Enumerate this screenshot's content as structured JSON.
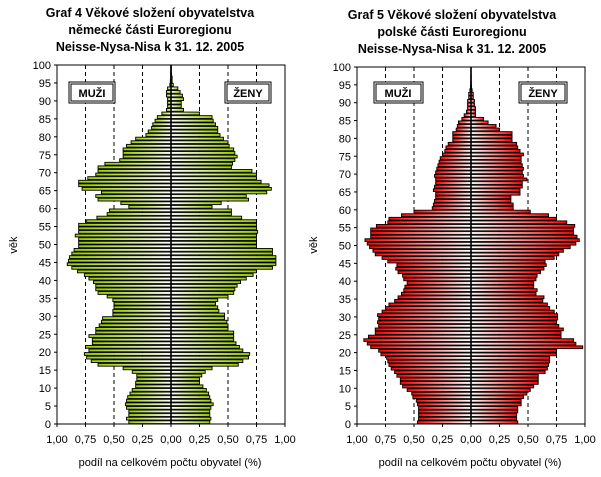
{
  "chart_data": [
    {
      "type": "bar",
      "orientation": "horizontal-pyramid",
      "title": [
        "Graf 4 Věkové složení obyvatelstva",
        "německé části Euroregionu",
        "Neisse-Nysa-Nisa k 31. 12. 2005"
      ],
      "xlabel": "podíl na celkovém počtu obyvatel (%)",
      "ylabel": "věk",
      "xlim": [
        -1.0,
        1.0
      ],
      "ylim": [
        0,
        100
      ],
      "xticks": [
        "1,00",
        "0,75",
        "0,50",
        "0,25",
        "0,00",
        "0,25",
        "0,50",
        "0,75",
        "1,00"
      ],
      "yticks": [
        "0",
        "5",
        "10",
        "15",
        "20",
        "25",
        "30",
        "35",
        "40",
        "45",
        "50",
        "55",
        "60",
        "65",
        "70",
        "75",
        "80",
        "85",
        "90",
        "95",
        "100"
      ],
      "grid": "vertical dashed at ±0.25, ±0.5, ±0.75",
      "legend_boxes": {
        "left": "MUŽI",
        "right": "ŽENY"
      },
      "color": "#99cc00",
      "categories": "age 0-99",
      "series": [
        {
          "name": "MUŽI",
          "values": [
            0.37,
            0.39,
            0.37,
            0.37,
            0.39,
            0.4,
            0.39,
            0.38,
            0.36,
            0.34,
            0.31,
            0.31,
            0.3,
            0.3,
            0.34,
            0.42,
            0.64,
            0.7,
            0.74,
            0.76,
            0.72,
            0.75,
            0.69,
            0.69,
            0.72,
            0.66,
            0.66,
            0.63,
            0.61,
            0.6,
            0.51,
            0.51,
            0.5,
            0.5,
            0.51,
            0.56,
            0.64,
            0.66,
            0.66,
            0.68,
            0.72,
            0.76,
            0.82,
            0.87,
            0.91,
            0.9,
            0.89,
            0.87,
            0.85,
            0.81,
            0.81,
            0.81,
            0.84,
            0.81,
            0.81,
            0.81,
            0.74,
            0.65,
            0.56,
            0.54,
            0.37,
            0.44,
            0.64,
            0.66,
            0.61,
            0.78,
            0.81,
            0.81,
            0.73,
            0.66,
            0.64,
            0.64,
            0.58,
            0.45,
            0.42,
            0.42,
            0.42,
            0.39,
            0.35,
            0.31,
            0.22,
            0.2,
            0.17,
            0.16,
            0.14,
            0.12,
            0.08,
            0.04,
            0.03,
            0.03,
            0.03,
            0.04,
            0.04,
            0.03,
            0.01,
            0.006,
            0.003,
            0.003,
            0.002,
            0.002
          ]
        },
        {
          "name": "ŽENY",
          "values": [
            0.34,
            0.35,
            0.34,
            0.34,
            0.35,
            0.37,
            0.35,
            0.34,
            0.33,
            0.31,
            0.28,
            0.25,
            0.25,
            0.27,
            0.3,
            0.36,
            0.59,
            0.63,
            0.68,
            0.69,
            0.63,
            0.6,
            0.57,
            0.55,
            0.55,
            0.55,
            0.5,
            0.5,
            0.49,
            0.47,
            0.47,
            0.42,
            0.41,
            0.39,
            0.41,
            0.5,
            0.55,
            0.56,
            0.58,
            0.61,
            0.66,
            0.72,
            0.75,
            0.89,
            0.92,
            0.92,
            0.92,
            0.89,
            0.89,
            0.75,
            0.75,
            0.75,
            0.75,
            0.76,
            0.75,
            0.75,
            0.75,
            0.62,
            0.53,
            0.53,
            0.36,
            0.44,
            0.68,
            0.66,
            0.84,
            0.88,
            0.86,
            0.79,
            0.75,
            0.75,
            0.71,
            0.53,
            0.54,
            0.56,
            0.58,
            0.56,
            0.55,
            0.51,
            0.5,
            0.46,
            0.43,
            0.41,
            0.41,
            0.39,
            0.37,
            0.36,
            0.25,
            0.11,
            0.09,
            0.09,
            0.11,
            0.1,
            0.08,
            0.06,
            0.02,
            0.01,
            0.01,
            0.005,
            0.003,
            0.003
          ]
        }
      ]
    },
    {
      "type": "bar",
      "orientation": "horizontal-pyramid",
      "title": [
        "Graf 5 Věkové složení obyvatelstva",
        "polské části Euroregionu",
        "Neisse-Nysa-Nisa k 31. 12. 2005"
      ],
      "xlabel": "podíl na celkovém počtu obyvatel (%)",
      "ylabel": "věk",
      "xlim": [
        -1.0,
        1.0
      ],
      "ylim": [
        0,
        100
      ],
      "xticks": [
        "1,00",
        "0,75",
        "0,50",
        "0,25",
        "0,00",
        "0,25",
        "0,50",
        "0,75",
        "1,00"
      ],
      "yticks": [
        "0",
        "5",
        "10",
        "15",
        "20",
        "25",
        "30",
        "35",
        "40",
        "45",
        "50",
        "55",
        "60",
        "65",
        "70",
        "75",
        "80",
        "85",
        "90",
        "95",
        "100"
      ],
      "grid": "vertical dashed at ±0.25, ±0.5, ±0.75",
      "legend_boxes": {
        "left": "MUŽI",
        "right": "ŽENY"
      },
      "color": "#ff0000",
      "categories": "age 0-99",
      "series": [
        {
          "name": "MUŽI",
          "values": [
            0.47,
            0.46,
            0.46,
            0.46,
            0.46,
            0.47,
            0.48,
            0.51,
            0.52,
            0.56,
            0.6,
            0.62,
            0.62,
            0.65,
            0.67,
            0.7,
            0.72,
            0.73,
            0.74,
            0.79,
            0.81,
            0.88,
            0.91,
            0.94,
            0.9,
            0.84,
            0.84,
            0.81,
            0.82,
            0.81,
            0.82,
            0.78,
            0.75,
            0.72,
            0.67,
            0.64,
            0.61,
            0.59,
            0.58,
            0.56,
            0.59,
            0.6,
            0.64,
            0.66,
            0.65,
            0.73,
            0.78,
            0.84,
            0.86,
            0.89,
            0.91,
            0.93,
            0.88,
            0.88,
            0.88,
            0.83,
            0.73,
            0.72,
            0.61,
            0.5,
            0.34,
            0.33,
            0.32,
            0.31,
            0.31,
            0.33,
            0.32,
            0.31,
            0.31,
            0.32,
            0.31,
            0.3,
            0.29,
            0.28,
            0.27,
            0.25,
            0.23,
            0.22,
            0.2,
            0.16,
            0.16,
            0.16,
            0.13,
            0.12,
            0.11,
            0.08,
            0.06,
            0.04,
            0.03,
            0.03,
            0.03,
            0.02,
            0.02,
            0.01,
            0.005,
            0.003,
            0.002,
            0.002,
            0.001,
            0.001
          ]
        },
        {
          "name": "ŽENY",
          "values": [
            0.41,
            0.4,
            0.4,
            0.41,
            0.41,
            0.44,
            0.44,
            0.46,
            0.49,
            0.52,
            0.55,
            0.59,
            0.59,
            0.59,
            0.65,
            0.67,
            0.68,
            0.69,
            0.69,
            0.75,
            0.75,
            0.98,
            0.92,
            0.9,
            0.79,
            0.79,
            0.81,
            0.77,
            0.75,
            0.76,
            0.76,
            0.73,
            0.69,
            0.67,
            0.63,
            0.64,
            0.57,
            0.58,
            0.55,
            0.55,
            0.57,
            0.58,
            0.61,
            0.64,
            0.66,
            0.65,
            0.73,
            0.77,
            0.81,
            0.87,
            0.92,
            0.95,
            0.93,
            0.9,
            0.9,
            0.91,
            0.84,
            0.75,
            0.68,
            0.52,
            0.37,
            0.37,
            0.35,
            0.35,
            0.43,
            0.43,
            0.45,
            0.45,
            0.49,
            0.46,
            0.45,
            0.46,
            0.45,
            0.44,
            0.44,
            0.46,
            0.43,
            0.41,
            0.4,
            0.36,
            0.36,
            0.36,
            0.25,
            0.22,
            0.15,
            0.11,
            0.04,
            0.04,
            0.04,
            0.03,
            0.03,
            0.02,
            0.02,
            0.01,
            0.005,
            0.003,
            0.002,
            0.002,
            0.001,
            0.001
          ]
        }
      ]
    }
  ]
}
